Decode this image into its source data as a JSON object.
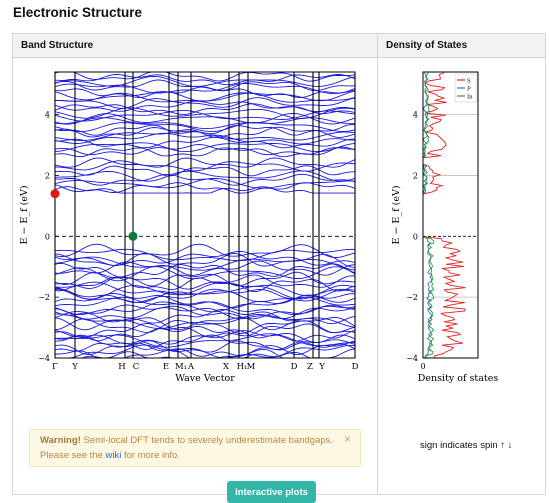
{
  "page": {
    "title": "Electronic Structure"
  },
  "band_panel": {
    "header": "Band Structure"
  },
  "dos_panel": {
    "header": "Density of States",
    "spin_note": "sign indicates spin ↑ ↓"
  },
  "warning": {
    "strong": "Warning!",
    "text1": " Semi-local DFT tends to severely underestimate bandgaps. Please see the ",
    "link": "wiki",
    "text2": " for more info.",
    "close": "×"
  },
  "buttons": {
    "interactive": "Interactive plots"
  },
  "colors": {
    "band": "#1a1adc",
    "vbm": "#117a3a",
    "cbm": "#e01818",
    "dos_s": "#e02020",
    "dos_p": "#3a6fb8",
    "dos_in": "#2e9a3e",
    "warning_bg": "#fcf8e3",
    "button": "#33b5a8"
  },
  "chart_data": [
    {
      "type": "line",
      "xlabel": "Wave Vector",
      "ylabel": "E − E_f (eV)",
      "ylim": [
        -4,
        5.4
      ],
      "yticks": [
        "−4",
        "−2",
        "0",
        "2",
        "4"
      ],
      "kpoints": [
        "Γ",
        "Y",
        "H",
        "C",
        "E",
        "M₁",
        "A",
        "X",
        "H₁",
        "M",
        "D",
        "Z",
        "Y",
        "D"
      ],
      "markers": [
        {
          "name": "CBM",
          "kpoint": "Γ",
          "energy": 1.4
        },
        {
          "name": "VBM",
          "kpoint": "C",
          "energy": 0.0
        }
      ],
      "fermi_level": 0,
      "grid": false
    },
    {
      "type": "line",
      "xlabel": "Density of states",
      "xticks": [
        "0"
      ],
      "ylabel": "E − E_f (eV)",
      "ylim": [
        -4,
        5.4
      ],
      "yticks": [
        "−4",
        "−2",
        "0",
        "2",
        "4"
      ],
      "legend": "top-right",
      "series": [
        {
          "name": "S"
        },
        {
          "name": "P"
        },
        {
          "name": "In"
        }
      ],
      "fermi_level": 0,
      "grid": true
    }
  ]
}
